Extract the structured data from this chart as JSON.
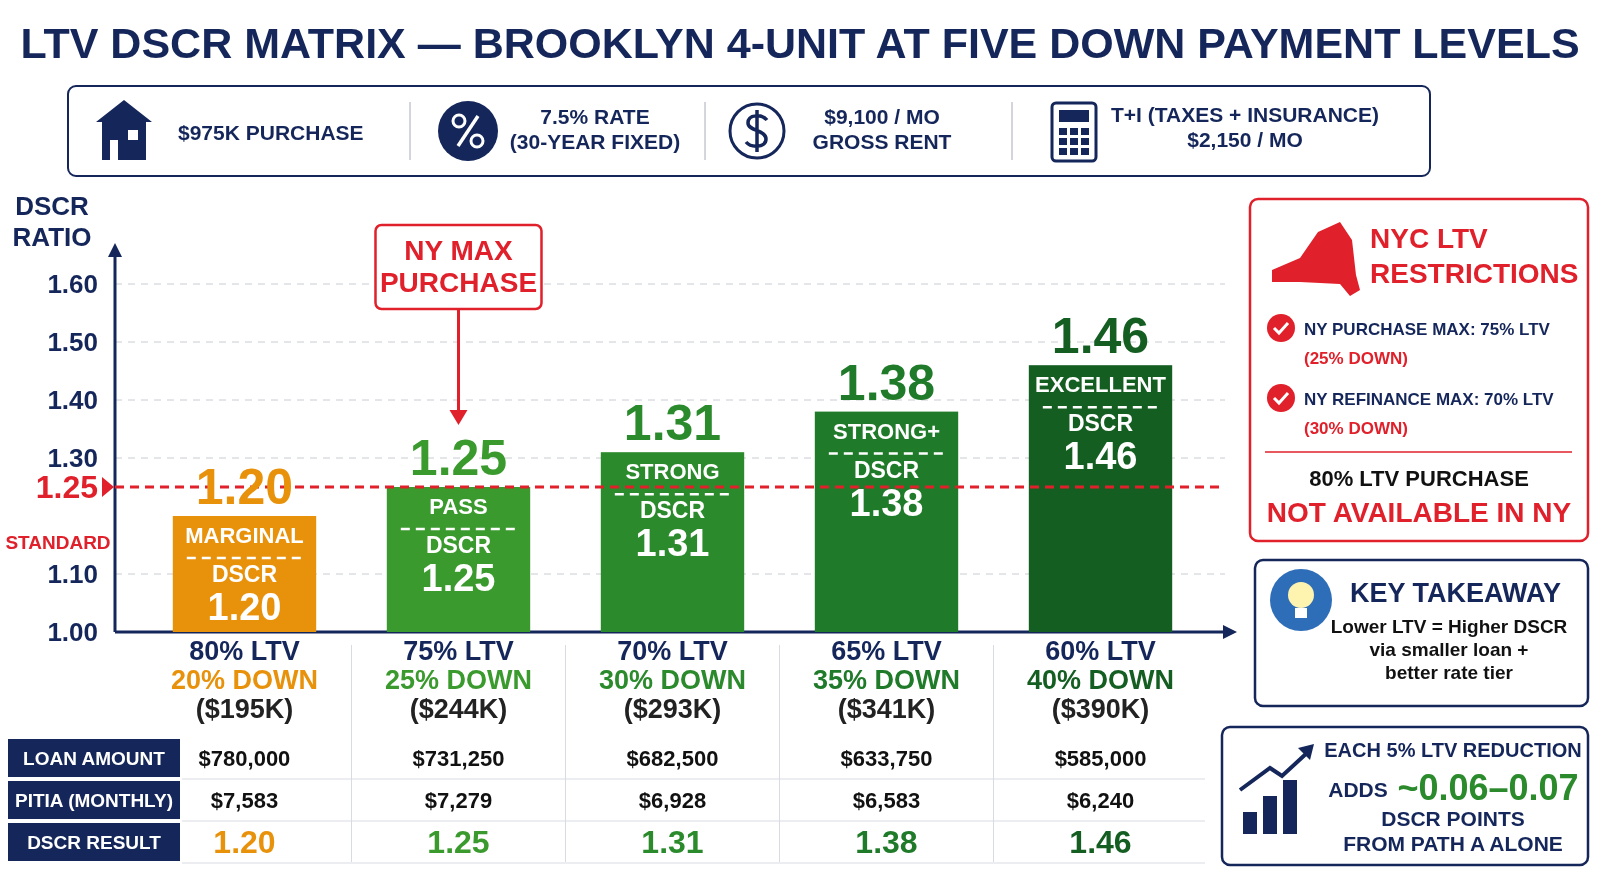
{
  "chart_data": {
    "type": "bar",
    "title": "LTV DSCR MATRIX — BROOKLYN 4-UNIT AT FIVE DOWN PAYMENT LEVELS",
    "ylabel": "DSCR\nRATIO",
    "categories": [
      "80% LTV\n20% DOWN\n($195K)",
      "75% LTV\n25% DOWN\n($244K)",
      "70% LTV\n30% DOWN\n($293K)",
      "65% LTV\n35% DOWN\n($341K)",
      "60% LTV\n40% DOWN\n($390K)"
    ],
    "values": [
      1.2,
      1.25,
      1.31,
      1.38,
      1.46
    ],
    "colors": [
      "#e8920c",
      "#3a9a2e",
      "#2b8a2c",
      "#1f7a29",
      "#155e22"
    ],
    "ylim": [
      1.0,
      1.65
    ],
    "yticks": [
      {
        "value": 1.0,
        "label": "1.00"
      },
      {
        "value": 1.1,
        "label": "1.10"
      },
      {
        "value": 1.3,
        "label": "1.30"
      },
      {
        "value": 1.4,
        "label": "1.40"
      },
      {
        "value": 1.5,
        "label": "1.50"
      },
      {
        "value": 1.6,
        "label": "1.60"
      }
    ],
    "grid": "y",
    "value_labels": [
      "1.20",
      "1.25",
      "1.31",
      "1.38",
      "1.46"
    ],
    "ref_lines": [
      {
        "axis": "y",
        "value": 1.25,
        "label": "1.25\nSTANDARD",
        "color": "#e0202a",
        "line_style": "dashed"
      }
    ],
    "annotations": [
      "$975K PURCHASE",
      "7.5% RATE\n(30-YEAR FIXED)",
      "$9,100 / MO\nGROSS RENT",
      "T+I (TAXES + INSURANCE)\n$2,150 / MO",
      "NYC LTV\nRESTRICTIONS",
      "NY PURCHASE MAX: 75% LTV\n(25% DOWN)",
      "NY REFINANCE MAX: 70% LTV\n(30% DOWN)",
      "80% LTV PURCHASE",
      "NOT AVAILABLE IN NY",
      "KEY TAKEAWAY",
      "Lower LTV = Higher DSCR\nvia smaller loan +\nbetter rate tier",
      "EACH 5% LTV REDUCTION",
      "ADDS",
      "~0.06–0.07",
      "DSCR POINTS\nFROM PATH A ALONE",
      "LOAN AMOUNT",
      "PITIA (MONTHLY)",
      "DSCR RESULT",
      "NY MAX\nPURCHASE",
      "MARGINAL",
      "DSCR",
      "1.20",
      "$780,000",
      "$7,583",
      "1.20",
      "PASS",
      "DSCR",
      "1.25",
      "$731,250",
      "$7,279",
      "1.25",
      "STRONG",
      "DSCR",
      "1.31",
      "$682,500",
      "$6,928",
      "1.31",
      "STRONG+",
      "DSCR",
      "1.38",
      "$633,750",
      "$6,583",
      "1.38",
      "EXCELLENT",
      "DSCR",
      "1.46",
      "$585,000",
      "$6,240",
      "1.46"
    ]
  }
}
